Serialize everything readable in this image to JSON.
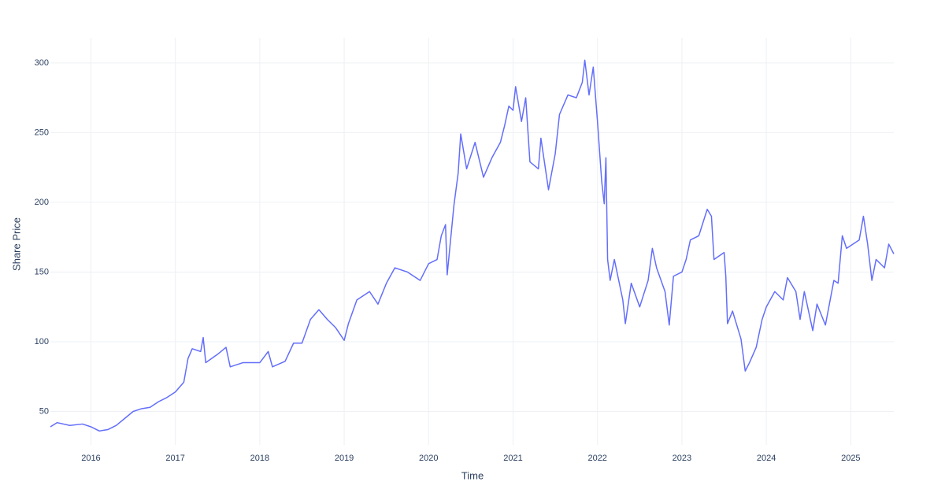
{
  "chart_data": {
    "type": "line",
    "xlabel": "Time",
    "ylabel": "Share Price",
    "color": "#636efa",
    "grid": true,
    "xlim": [
      2015.52,
      2025.51
    ],
    "xticks": [
      2016,
      2017,
      2018,
      2019,
      2020,
      2021,
      2022,
      2023,
      2024,
      2025
    ],
    "ylim": [
      26,
      318
    ],
    "yticks": [
      50,
      100,
      150,
      200,
      250,
      300
    ],
    "x": [
      2015.52,
      2015.6,
      2015.75,
      2015.9,
      2016.0,
      2016.1,
      2016.2,
      2016.3,
      2016.4,
      2016.5,
      2016.6,
      2016.7,
      2016.8,
      2016.9,
      2017.0,
      2017.1,
      2017.15,
      2017.2,
      2017.3,
      2017.33,
      2017.36,
      2017.5,
      2017.6,
      2017.65,
      2017.8,
      2018.0,
      2018.1,
      2018.15,
      2018.3,
      2018.4,
      2018.5,
      2018.6,
      2018.7,
      2018.8,
      2018.9,
      2019.0,
      2019.05,
      2019.15,
      2019.3,
      2019.4,
      2019.5,
      2019.6,
      2019.75,
      2019.9,
      2020.0,
      2020.1,
      2020.15,
      2020.2,
      2020.22,
      2020.3,
      2020.35,
      2020.38,
      2020.45,
      2020.55,
      2020.65,
      2020.75,
      2020.85,
      2020.9,
      2020.95,
      2021.0,
      2021.03,
      2021.1,
      2021.15,
      2021.2,
      2021.3,
      2021.33,
      2021.42,
      2021.5,
      2021.55,
      2021.65,
      2021.75,
      2021.82,
      2021.85,
      2021.9,
      2021.95,
      2022.0,
      2022.05,
      2022.08,
      2022.1,
      2022.12,
      2022.15,
      2022.2,
      2022.3,
      2022.33,
      2022.4,
      2022.5,
      2022.6,
      2022.65,
      2022.7,
      2022.8,
      2022.85,
      2022.9,
      2023.0,
      2023.05,
      2023.1,
      2023.2,
      2023.3,
      2023.35,
      2023.38,
      2023.5,
      2023.52,
      2023.54,
      2023.6,
      2023.7,
      2023.75,
      2023.8,
      2023.88,
      2023.95,
      2024.0,
      2024.1,
      2024.2,
      2024.25,
      2024.35,
      2024.4,
      2024.45,
      2024.55,
      2024.6,
      2024.7,
      2024.8,
      2024.85,
      2024.9,
      2024.95,
      2025.1,
      2025.15,
      2025.2,
      2025.25,
      2025.3,
      2025.4,
      2025.45,
      2025.51
    ],
    "values": [
      39,
      42,
      40,
      41,
      39,
      36,
      37,
      40,
      45,
      50,
      52,
      53,
      57,
      60,
      64,
      71,
      88,
      95,
      93,
      103,
      85,
      91,
      96,
      82,
      85,
      85,
      93,
      82,
      86,
      99,
      99,
      116,
      123,
      116,
      110,
      101,
      113,
      130,
      136,
      127,
      142,
      153,
      150,
      144,
      156,
      159,
      176,
      184,
      148,
      198,
      221,
      249,
      224,
      243,
      218,
      232,
      243,
      255,
      269,
      266,
      283,
      258,
      275,
      229,
      224,
      246,
      209,
      235,
      263,
      277,
      275,
      286,
      302,
      277,
      297,
      258,
      215,
      199,
      232,
      159,
      144,
      159,
      130,
      113,
      142,
      125,
      144,
      167,
      153,
      136,
      112,
      147,
      150,
      159,
      173,
      176,
      195,
      190,
      159,
      164,
      147,
      113,
      122,
      102,
      79,
      85,
      96,
      116,
      125,
      136,
      130,
      146,
      136,
      116,
      136,
      108,
      127,
      112,
      144,
      142,
      176,
      167,
      173,
      190,
      170,
      144,
      159,
      153,
      170,
      163
    ]
  }
}
